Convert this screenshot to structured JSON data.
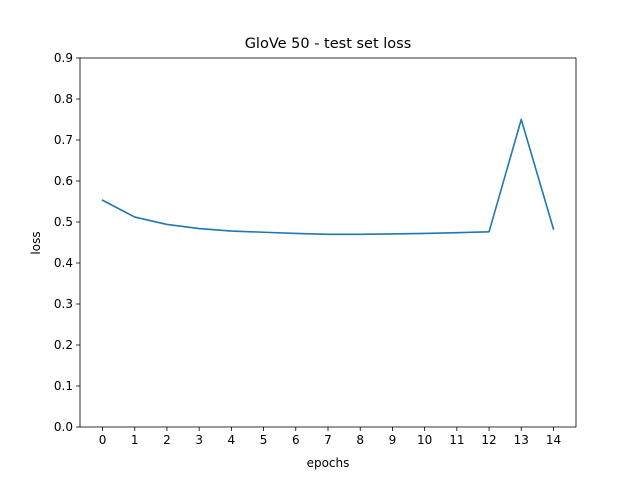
{
  "chart_data": {
    "type": "line",
    "title": "GloVe 50 - test set loss",
    "xlabel": "epochs",
    "ylabel": "loss",
    "xlim": [
      -0.7,
      14.7
    ],
    "ylim": [
      0.0,
      0.9
    ],
    "xticks": [
      0,
      1,
      2,
      3,
      4,
      5,
      6,
      7,
      8,
      9,
      10,
      11,
      12,
      13,
      14
    ],
    "yticks": [
      0.0,
      0.1,
      0.2,
      0.3,
      0.4,
      0.5,
      0.6,
      0.7,
      0.8,
      0.9
    ],
    "ytick_labels": [
      "0.0",
      "0.1",
      "0.2",
      "0.3",
      "0.4",
      "0.5",
      "0.6",
      "0.7",
      "0.8",
      "0.9"
    ],
    "grid": false,
    "series": [
      {
        "color": "#1f77b4",
        "x": [
          0,
          1,
          2,
          3,
          4,
          5,
          6,
          7,
          8,
          9,
          10,
          11,
          12,
          13,
          14
        ],
        "y": [
          0.553,
          0.512,
          0.494,
          0.484,
          0.478,
          0.475,
          0.472,
          0.47,
          0.47,
          0.471,
          0.472,
          0.474,
          0.476,
          0.75,
          0.483
        ]
      }
    ]
  }
}
